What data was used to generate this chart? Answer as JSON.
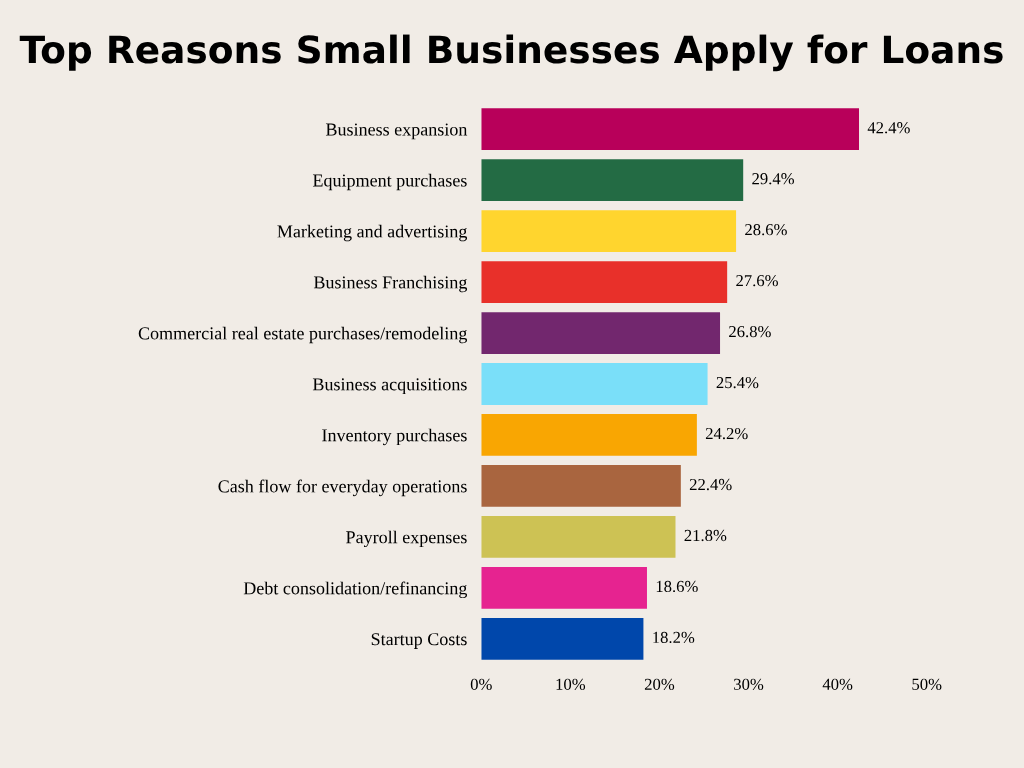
{
  "chart_data": {
    "type": "bar",
    "orientation": "horizontal",
    "title": "Top Reasons Small Businesses Apply for Loans",
    "categories": [
      "Business expansion",
      "Equipment purchases",
      "Marketing and advertising",
      "Business Franchising",
      "Commercial real estate purchases/remodeling",
      "Business acquisitions",
      "Inventory purchases",
      "Cash flow for everyday operations",
      "Payroll expenses",
      "Debt consolidation/refinancing",
      "Startup Costs"
    ],
    "values": [
      42.4,
      29.4,
      28.6,
      27.6,
      26.8,
      25.4,
      24.2,
      22.4,
      21.8,
      18.6,
      18.2
    ],
    "value_labels": [
      "42.4%",
      "29.4%",
      "28.6%",
      "27.6%",
      "26.8%",
      "25.4%",
      "24.2%",
      "22.4%",
      "21.8%",
      "18.6%",
      "18.2%"
    ],
    "colors": [
      "#b8005a",
      "#236b44",
      "#ffd52e",
      "#e8302a",
      "#72276e",
      "#7adff9",
      "#f9a602",
      "#a9653f",
      "#cdc254",
      "#e62390",
      "#0047ab"
    ],
    "xlim": [
      0,
      50
    ],
    "xticks": [
      {
        "value": 0,
        "label": "0%"
      },
      {
        "value": 10,
        "label": "10%"
      },
      {
        "value": 20,
        "label": "20%"
      },
      {
        "value": 30,
        "label": "30%"
      },
      {
        "value": 40,
        "label": "40%"
      },
      {
        "value": 50,
        "label": "50%"
      }
    ],
    "grid": false,
    "legend": false
  }
}
